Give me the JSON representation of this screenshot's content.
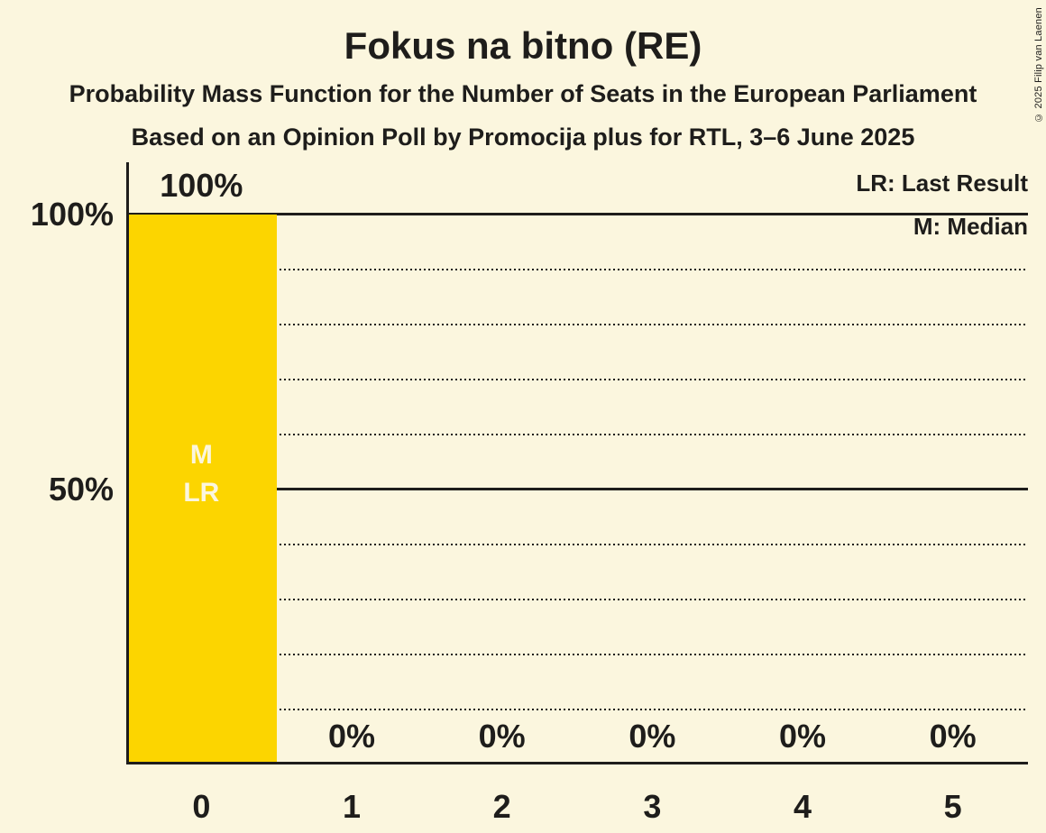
{
  "title": "Fokus na bitno (RE)",
  "subtitle1": "Probability Mass Function for the Number of Seats in the European Parliament",
  "subtitle2": "Based on an Opinion Poll by Promocija plus for RTL, 3–6 June 2025",
  "copyright": "© 2025 Filip van Laenen",
  "legend": {
    "last_result": "LR: Last Result",
    "median": "M: Median"
  },
  "colors": {
    "background": "#fbf6de",
    "bar": "#fcd500",
    "ink": "#1e1d1b",
    "bar_annotation_text": "#fbf6de"
  },
  "chart_data": {
    "type": "bar",
    "title": "Fokus na bitno (RE)",
    "categories": [
      "0",
      "1",
      "2",
      "3",
      "4",
      "5"
    ],
    "values": [
      100,
      0,
      0,
      0,
      0,
      0
    ],
    "bar_labels": [
      "100%",
      "0%",
      "0%",
      "0%",
      "0%",
      "0%"
    ],
    "ylim": [
      0,
      100
    ],
    "y_tick_labels": [
      {
        "value": 100,
        "label": "100%"
      },
      {
        "value": 50,
        "label": "50%"
      }
    ],
    "y_solid_gridlines": [
      100,
      50
    ],
    "y_dotted_gridlines": [
      90,
      80,
      70,
      60,
      40,
      30,
      20,
      10
    ],
    "annotation": {
      "category_index": 0,
      "lines": [
        "M",
        "LR"
      ]
    },
    "legend_position": "top-right",
    "grid": "horizontal-dotted"
  }
}
